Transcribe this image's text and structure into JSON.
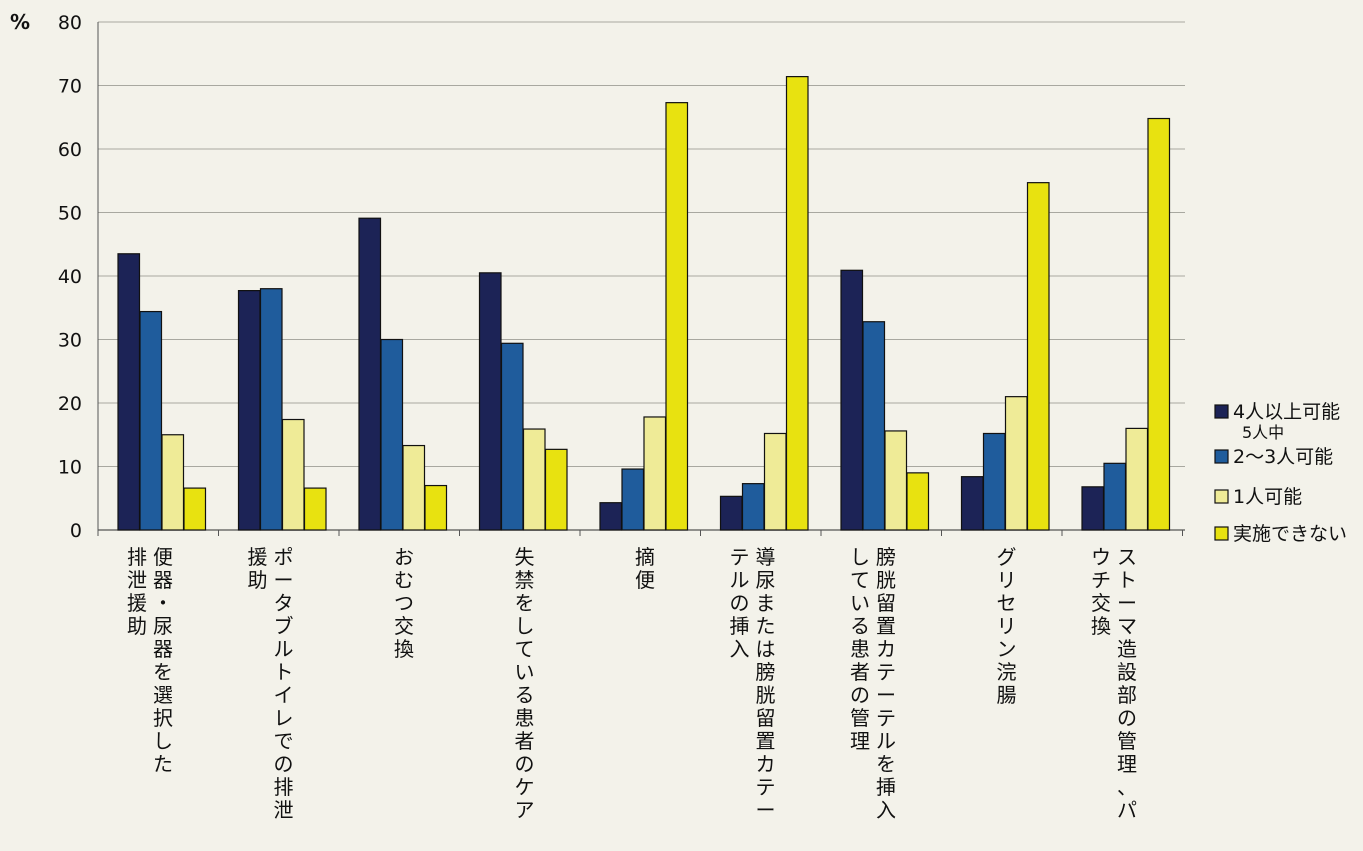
{
  "chart_data": {
    "type": "bar",
    "y_unit": "%",
    "ylim": [
      0,
      80
    ],
    "yticks": [
      0,
      10,
      20,
      30,
      40,
      50,
      60,
      70,
      80
    ],
    "grid": true,
    "legend_position": "right",
    "legend_note": "5人中",
    "categories": [
      {
        "name": "便器・尿器を選択した排泄援助",
        "lines": [
          "便器・尿器を選択した",
          "排泄援助"
        ]
      },
      {
        "name": "ポータブルトイレでの排泄援助",
        "lines": [
          "ポータブルトイレでの排泄",
          "援助"
        ]
      },
      {
        "name": "おむつ交換",
        "lines": [
          "おむつ交換"
        ]
      },
      {
        "name": "失禁をしている患者のケア",
        "lines": [
          "失禁をしている患者のケア"
        ]
      },
      {
        "name": "摘便",
        "lines": [
          "摘便"
        ]
      },
      {
        "name": "導尿または膀胱留置カテーテルの挿入",
        "lines": [
          "導尿または膀胱留置カテー",
          "テルの挿入"
        ]
      },
      {
        "name": "膀胱留置カテーテルを挿入している患者の管理",
        "lines": [
          "膀胱留置カテーテルを挿入",
          "している患者の管理"
        ]
      },
      {
        "name": "グリセリン浣腸",
        "lines": [
          "グリセリン浣腸"
        ]
      },
      {
        "name": "ストーマ造設部の管理、パウチ交換",
        "lines": [
          "ストーマ造設部の管理、パ",
          "ウチ交換"
        ]
      }
    ],
    "series": [
      {
        "name": "4人以上可能",
        "color": "#1c2356",
        "values": [
          43.5,
          37.7,
          49.1,
          40.5,
          4.3,
          5.3,
          40.9,
          8.4,
          6.8
        ]
      },
      {
        "name": "2～3人可能",
        "color": "#1f5c9c",
        "values": [
          34.4,
          38.0,
          30.0,
          29.4,
          9.6,
          7.3,
          32.8,
          15.2,
          10.5
        ]
      },
      {
        "name": "1人可能",
        "color": "#efeb97",
        "values": [
          15.0,
          17.4,
          13.3,
          15.9,
          17.8,
          15.2,
          15.6,
          21.0,
          16.0
        ]
      },
      {
        "name": "実施できない",
        "color": "#e8e210",
        "values": [
          6.6,
          6.6,
          7.0,
          12.7,
          67.3,
          71.4,
          9.0,
          54.7,
          64.8
        ]
      }
    ]
  }
}
